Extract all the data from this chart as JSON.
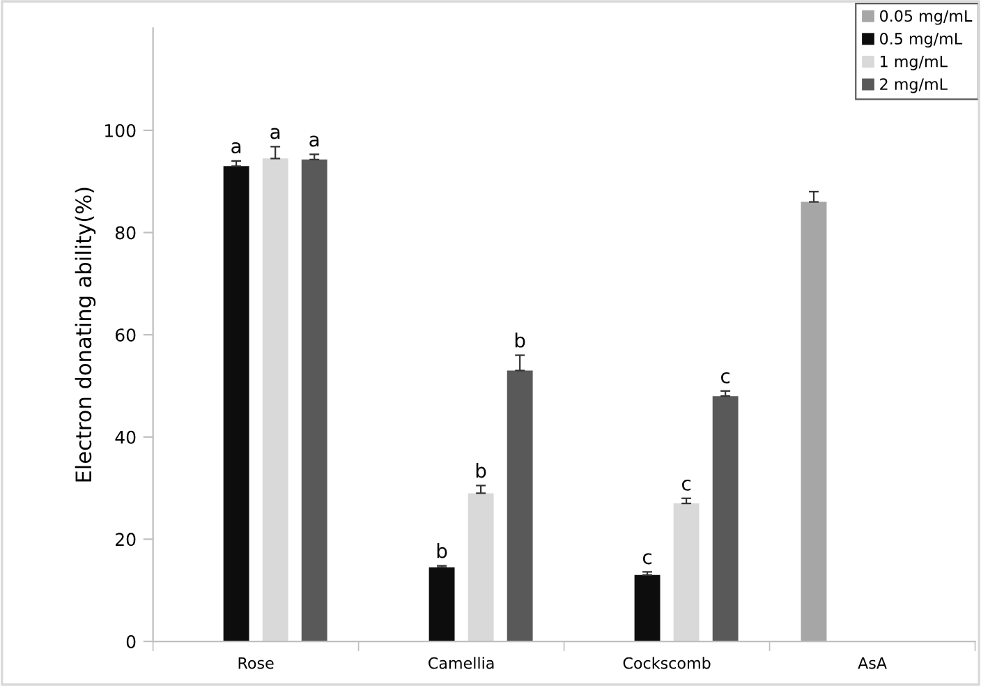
{
  "chart_data": {
    "type": "bar",
    "ylabel": "Electron donating ability(%)",
    "categories": [
      "Rose",
      "Camellia",
      "Cockscomb",
      "AsA"
    ],
    "series": [
      {
        "name": "0.05 mg/mL",
        "color": "#a6a6a6",
        "values": [
          null,
          null,
          null,
          86
        ],
        "errors": [
          null,
          null,
          null,
          2
        ]
      },
      {
        "name": "0.5 mg/mL",
        "color": "#0d0d0d",
        "values": [
          93,
          14.5,
          13,
          null
        ],
        "errors": [
          1,
          0.3,
          0.6,
          null
        ],
        "value_labels": [
          "a",
          "b",
          "c",
          null
        ]
      },
      {
        "name": "1 mg/mL",
        "color": "#d9d9d9",
        "values": [
          94.5,
          29,
          27,
          null
        ],
        "errors": [
          2.3,
          1.5,
          1,
          null
        ],
        "value_labels": [
          "a",
          "b",
          "c",
          null
        ]
      },
      {
        "name": "2 mg/mL",
        "color": "#595959",
        "values": [
          94.3,
          53,
          48,
          null
        ],
        "errors": [
          1,
          3,
          1,
          null
        ],
        "value_labels": [
          "a",
          "b",
          "c",
          null
        ]
      }
    ],
    "ylim": [
      0,
      120
    ],
    "yticks": [
      0,
      20,
      40,
      60,
      80,
      100
    ],
    "grid": false,
    "legend": "top right"
  }
}
